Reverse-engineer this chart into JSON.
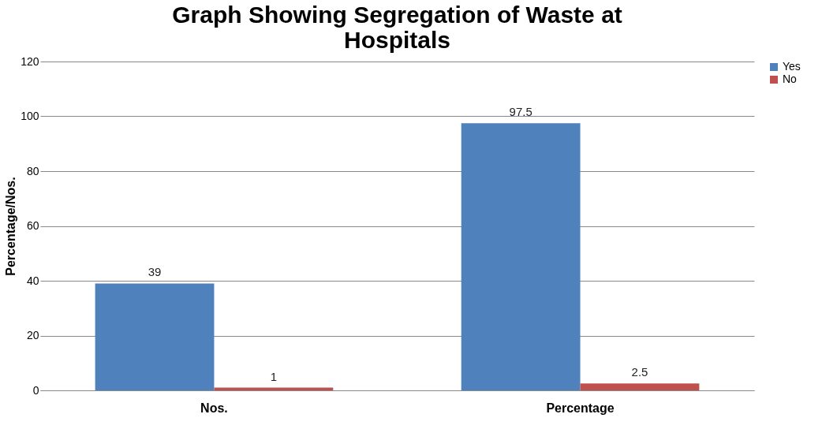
{
  "chart_data": {
    "type": "bar",
    "title": [
      "Graph Showing Segregation of Waste at",
      "Hospitals"
    ],
    "ylabel": "Percentage/Nos.",
    "categories": [
      "Nos.",
      "Percentage"
    ],
    "series": [
      {
        "name": "Yes",
        "color": "#4f81bd",
        "values": [
          39,
          97.5
        ]
      },
      {
        "name": "No",
        "color": "#c0504d",
        "values": [
          1,
          2.5
        ]
      }
    ],
    "ylim": [
      0,
      120
    ],
    "yticks": [
      0,
      20,
      40,
      60,
      80,
      100,
      120
    ],
    "grid": "y",
    "legend": "right",
    "data_labels": true
  }
}
